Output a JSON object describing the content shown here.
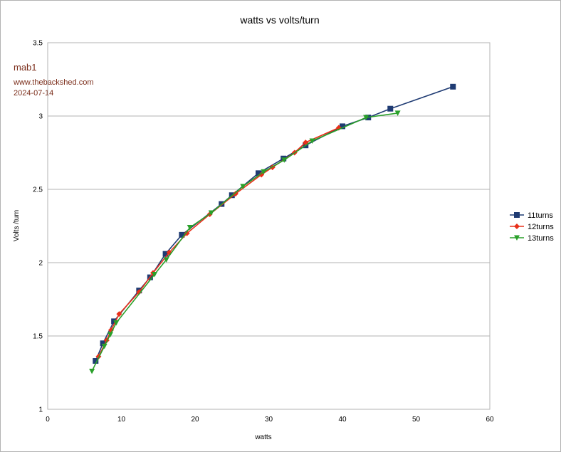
{
  "chart_data": {
    "type": "line",
    "title": "watts vs volts/turn",
    "xlabel": "watts",
    "ylabel": "Volts /turn",
    "xlim": [
      0,
      60
    ],
    "ylim": [
      1,
      3.5
    ],
    "xticks": [
      0,
      10,
      20,
      30,
      40,
      50,
      60
    ],
    "yticks": [
      1,
      1.5,
      2,
      2.5,
      3,
      3.5
    ],
    "xtick_labels": [
      "0",
      "10",
      "20",
      "30",
      "40",
      "50",
      "60"
    ],
    "ytick_labels": [
      "1",
      "1.5",
      "2",
      "2.5",
      "3",
      "3.5"
    ],
    "grid": "horizontal",
    "legend_position": "right",
    "annotations": [
      "mab1",
      "www.thebackshed.com",
      "2024-07-14"
    ],
    "series": [
      {
        "name": "11turns",
        "color": "#1f3b73",
        "marker": "square",
        "points": [
          [
            6.5,
            1.33
          ],
          [
            7.5,
            1.45
          ],
          [
            9.0,
            1.6
          ],
          [
            12.4,
            1.81
          ],
          [
            13.9,
            1.9
          ],
          [
            16.0,
            2.06
          ],
          [
            18.2,
            2.19
          ],
          [
            23.6,
            2.4
          ],
          [
            25.0,
            2.46
          ],
          [
            28.6,
            2.61
          ],
          [
            32.0,
            2.71
          ],
          [
            35.0,
            2.8
          ],
          [
            40.0,
            2.93
          ],
          [
            43.5,
            2.99
          ],
          [
            46.5,
            3.05
          ],
          [
            55.0,
            3.2
          ]
        ]
      },
      {
        "name": "12turns",
        "color": "#e8301a",
        "marker": "diamond",
        "points": [
          [
            6.9,
            1.36
          ],
          [
            8.0,
            1.47
          ],
          [
            8.6,
            1.54
          ],
          [
            9.7,
            1.65
          ],
          [
            12.4,
            1.8
          ],
          [
            14.3,
            1.93
          ],
          [
            16.5,
            2.07
          ],
          [
            18.9,
            2.2
          ],
          [
            22.0,
            2.33
          ],
          [
            25.5,
            2.47
          ],
          [
            29.0,
            2.6
          ],
          [
            30.5,
            2.65
          ],
          [
            33.5,
            2.75
          ],
          [
            35.0,
            2.82
          ],
          [
            39.5,
            2.92
          ]
        ]
      },
      {
        "name": "13turns",
        "color": "#2aa02a",
        "marker": "triangle-down",
        "points": [
          [
            6.0,
            1.26
          ],
          [
            7.7,
            1.43
          ],
          [
            8.5,
            1.51
          ],
          [
            9.3,
            1.59
          ],
          [
            14.5,
            1.92
          ],
          [
            16.1,
            2.02
          ],
          [
            19.3,
            2.24
          ],
          [
            22.2,
            2.34
          ],
          [
            26.5,
            2.52
          ],
          [
            29.3,
            2.62
          ],
          [
            32.1,
            2.7
          ],
          [
            35.9,
            2.83
          ],
          [
            43.2,
            2.99
          ],
          [
            47.5,
            3.02
          ]
        ]
      }
    ]
  }
}
